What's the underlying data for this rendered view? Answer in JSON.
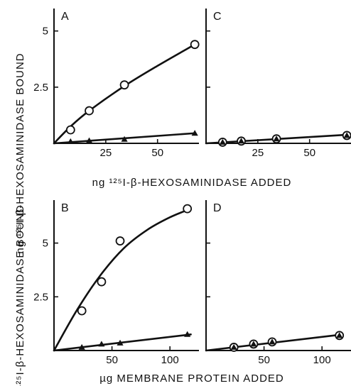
{
  "figure": {
    "x_title_top": "ng ¹²⁵I-β-HEXOSAMINIDASE ADDED",
    "x_title_bottom": "µg MEMBRANE PROTEIN ADDED",
    "y_title_top": "ng ¹²⁵I-β-HEXOSAMINIDASE BOUND",
    "y_title_bottom": "¹²⁵I-β-HEXOSAMINIDASE BOUND"
  },
  "chart_data": [
    {
      "panel": "A",
      "type": "line",
      "xlabel": "ng ¹²⁵I-β-HEXOSAMINIDASE ADDED",
      "ylabel": "ng ¹²⁵I-β-HEXOSAMINIDASE BOUND",
      "xlim": [
        0,
        70
      ],
      "ylim": [
        0,
        6
      ],
      "xticks": [
        25,
        50
      ],
      "yticks": [
        2.5,
        5
      ],
      "xtick_labels": [
        "25",
        "50"
      ],
      "ytick_labels": [
        "2.5",
        "5"
      ],
      "series": [
        {
          "marker": "open-circle",
          "points": [
            [
              8,
              0.6
            ],
            [
              17,
              1.45
            ],
            [
              34,
              2.6
            ],
            [
              68,
              4.4
            ]
          ],
          "curve": [
            [
              0,
              0
            ],
            [
              8,
              0.75
            ],
            [
              17,
              1.45
            ],
            [
              34,
              2.55
            ],
            [
              50,
              3.45
            ],
            [
              68,
              4.4
            ]
          ]
        },
        {
          "marker": "filled-triangle",
          "points": [
            [
              8,
              0.08
            ],
            [
              17,
              0.12
            ],
            [
              34,
              0.18
            ],
            [
              68,
              0.45
            ]
          ],
          "curve": [
            [
              0,
              0
            ],
            [
              68,
              0.45
            ]
          ]
        }
      ]
    },
    {
      "panel": "C",
      "type": "line",
      "xlim": [
        0,
        70
      ],
      "ylim": [
        0,
        6
      ],
      "xticks": [
        25,
        50
      ],
      "yticks": [
        2.5,
        5
      ],
      "xtick_labels": [
        "25",
        "50"
      ],
      "ytick_labels": [
        "",
        ""
      ],
      "series": [
        {
          "marker": "open-circle",
          "points": [
            [
              8,
              0.05
            ],
            [
              17,
              0.1
            ],
            [
              34,
              0.2
            ],
            [
              68,
              0.35
            ]
          ],
          "curve": [
            [
              0,
              0
            ],
            [
              68,
              0.38
            ]
          ]
        },
        {
          "marker": "filled-triangle",
          "points": [
            [
              8,
              0.05
            ],
            [
              17,
              0.1
            ],
            [
              34,
              0.2
            ],
            [
              68,
              0.35
            ]
          ],
          "curve": null
        }
      ]
    },
    {
      "panel": "B",
      "type": "line",
      "xlabel": "µg MEMBRANE PROTEIN ADDED",
      "ylabel": "ng ¹²⁵I-β-HEXOSAMINIDASE BOUND",
      "xlim": [
        0,
        125
      ],
      "ylim": [
        0,
        7
      ],
      "xticks": [
        50,
        100
      ],
      "yticks": [
        2.5,
        5
      ],
      "xtick_labels": [
        "50",
        "100"
      ],
      "ytick_labels": [
        "2.5",
        "5"
      ],
      "series": [
        {
          "marker": "open-circle",
          "points": [
            [
              24,
              1.85
            ],
            [
              41,
              3.2
            ],
            [
              57,
              5.1
            ],
            [
              115,
              6.6
            ]
          ],
          "curve": [
            [
              0,
              0
            ],
            [
              20,
              1.9
            ],
            [
              40,
              3.5
            ],
            [
              60,
              4.75
            ],
            [
              80,
              5.6
            ],
            [
              100,
              6.2
            ],
            [
              118,
              6.6
            ]
          ]
        },
        {
          "marker": "filled-triangle",
          "points": [
            [
              24,
              0.15
            ],
            [
              41,
              0.3
            ],
            [
              57,
              0.35
            ],
            [
              115,
              0.75
            ]
          ],
          "curve": [
            [
              0,
              0
            ],
            [
              118,
              0.75
            ]
          ]
        }
      ]
    },
    {
      "panel": "D",
      "type": "line",
      "xlim": [
        0,
        125
      ],
      "ylim": [
        0,
        7
      ],
      "xticks": [
        50,
        100
      ],
      "yticks": [
        2.5,
        5
      ],
      "xtick_labels": [
        "50",
        "100"
      ],
      "ytick_labels": [
        "",
        ""
      ],
      "series": [
        {
          "marker": "open-circle",
          "points": [
            [
              24,
              0.15
            ],
            [
              41,
              0.3
            ],
            [
              57,
              0.4
            ],
            [
              115,
              0.7
            ]
          ],
          "curve": [
            [
              0,
              0
            ],
            [
              118,
              0.75
            ]
          ]
        },
        {
          "marker": "filled-triangle",
          "points": [
            [
              24,
              0.15
            ],
            [
              41,
              0.3
            ],
            [
              57,
              0.4
            ],
            [
              115,
              0.7
            ]
          ],
          "curve": null
        }
      ]
    }
  ]
}
